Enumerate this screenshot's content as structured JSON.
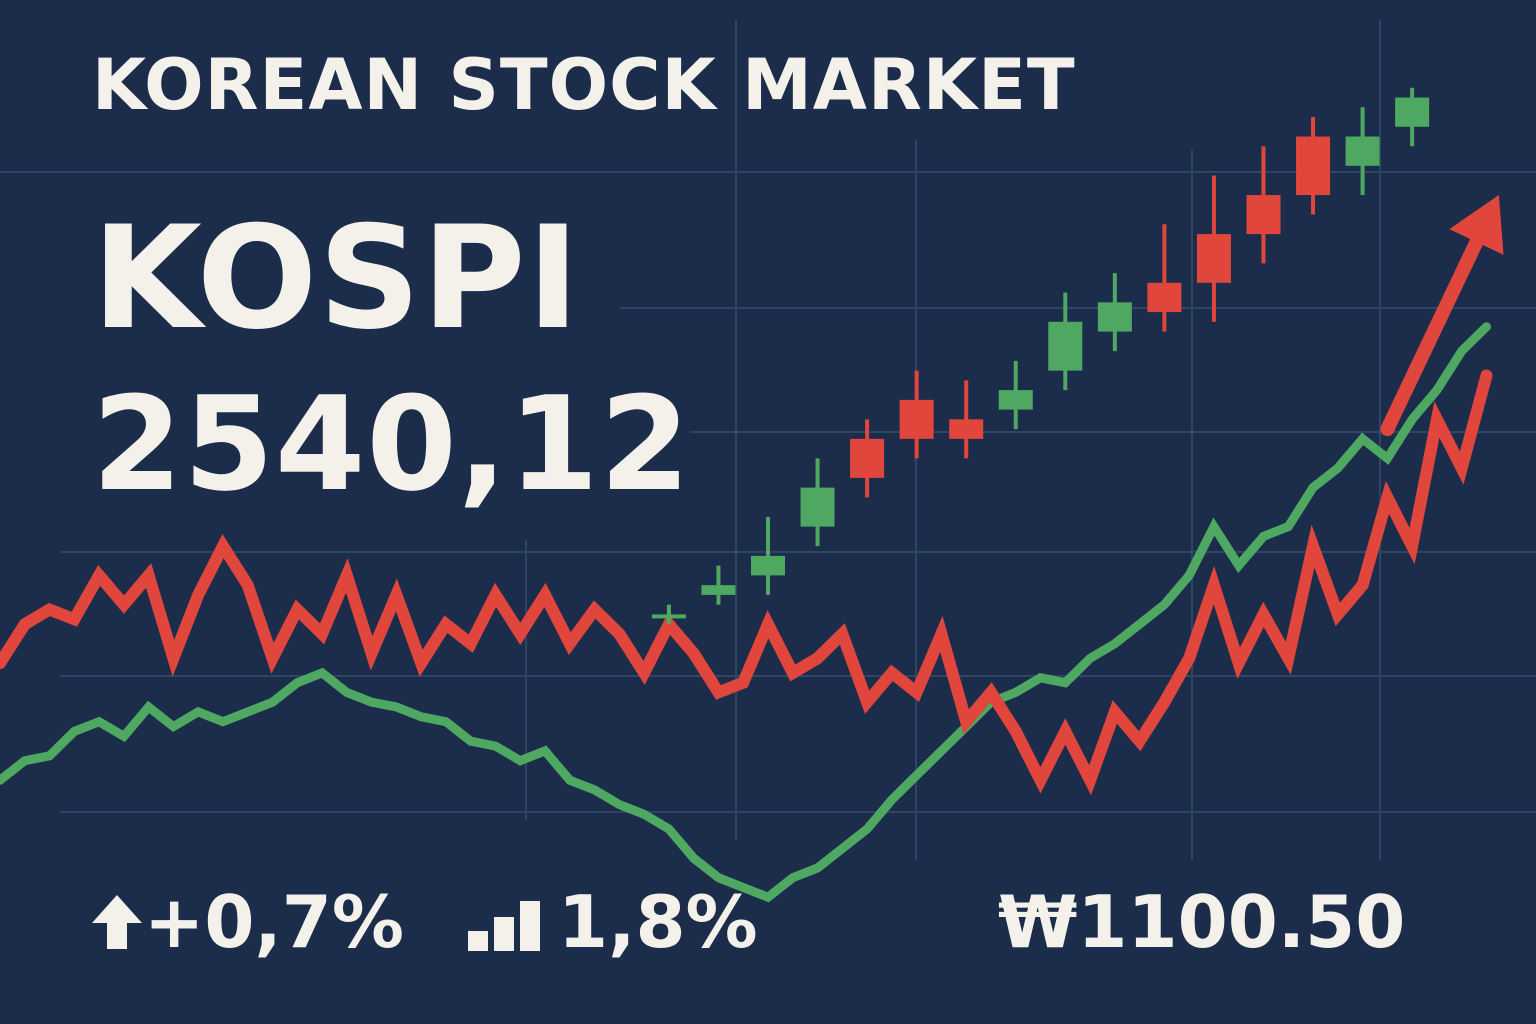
{
  "header": {
    "title": "KOREAN STOCK MARKET",
    "index_name": "KOSPI",
    "index_value": "2540,12"
  },
  "stats": {
    "change": {
      "icon": "up-arrow-icon",
      "text": "+0,7%"
    },
    "volume": {
      "icon": "bar-chart-icon",
      "text": "1,8%"
    },
    "fx": {
      "text": "₩1100.50"
    }
  },
  "colors": {
    "background": "#1b2d4b",
    "grid": "#2e4566",
    "red": "#e0463c",
    "green": "#4fa862",
    "text": "#f4f1ea"
  },
  "chart_data": {
    "type": "line",
    "x": [
      0,
      10,
      20,
      30,
      40,
      50,
      60,
      70,
      80,
      90,
      100,
      110,
      120,
      130,
      140,
      150,
      160,
      170,
      180,
      190,
      200,
      210,
      220,
      230,
      240,
      250,
      260,
      270,
      280,
      290,
      300,
      310,
      320,
      330,
      340,
      350,
      360,
      370,
      380,
      390,
      400,
      410,
      420,
      430,
      440,
      450,
      460,
      470,
      480,
      490,
      500,
      510,
      520,
      530,
      540,
      550,
      560,
      570,
      580,
      590,
      600
    ],
    "series": [
      {
        "color": "#e0463c",
        "values": [
          54,
          62,
          65,
          63,
          72,
          66,
          72,
          55,
          68,
          78,
          70,
          55,
          65,
          60,
          72,
          56,
          68,
          54,
          62,
          58,
          68,
          60,
          68,
          58,
          65,
          60,
          52,
          62,
          56,
          48,
          50,
          62,
          52,
          55,
          60,
          46,
          52,
          48,
          60,
          42,
          48,
          40,
          30,
          40,
          30,
          44,
          38,
          46,
          55,
          70,
          54,
          64,
          55,
          78,
          64,
          70,
          88,
          78,
          104,
          94,
          113
        ]
      },
      {
        "color": "#4fa862",
        "values": [
          30,
          34,
          35,
          40,
          42,
          39,
          45,
          41,
          44,
          42,
          44,
          46,
          50,
          52,
          48,
          46,
          45,
          43,
          42,
          38,
          37,
          34,
          36,
          30,
          28,
          25,
          23,
          20,
          14,
          10,
          8,
          6,
          10,
          12,
          16,
          20,
          26,
          31,
          36,
          41,
          46,
          48,
          51,
          50,
          55,
          58,
          62,
          66,
          72,
          82,
          74,
          80,
          82,
          90,
          94,
          100,
          96,
          104,
          110,
          118,
          123
        ]
      }
    ],
    "candles": {
      "x": [
        270,
        290,
        310,
        330,
        350,
        370,
        390,
        410,
        430,
        450,
        470,
        490,
        510,
        530,
        550,
        570
      ],
      "open": [
        64,
        68,
        72,
        82,
        92,
        100,
        104,
        106,
        114,
        122,
        126,
        132,
        142,
        150,
        156,
        164
      ],
      "close": [
        64,
        70,
        76,
        90,
        100,
        108,
        100,
        110,
        124,
        128,
        132,
        142,
        150,
        162,
        162,
        170
      ],
      "high": [
        66,
        74,
        84,
        96,
        104,
        114,
        112,
        116,
        130,
        134,
        144,
        154,
        160,
        166,
        168,
        172
      ],
      "low": [
        62,
        66,
        68,
        78,
        88,
        96,
        96,
        102,
        110,
        118,
        122,
        124,
        136,
        146,
        150,
        160
      ],
      "direction": [
        "up",
        "up",
        "up",
        "up",
        "down",
        "down",
        "down",
        "up",
        "up",
        "up",
        "down",
        "down",
        "down",
        "down",
        "up",
        "up"
      ]
    },
    "trend_arrow": {
      "from_x": 560,
      "from_y": 102,
      "to_x": 605,
      "to_y": 150,
      "direction": "up"
    },
    "xlim": [
      0,
      620
    ],
    "ylim": [
      -20,
      190
    ],
    "grid": true,
    "legend": "none"
  }
}
